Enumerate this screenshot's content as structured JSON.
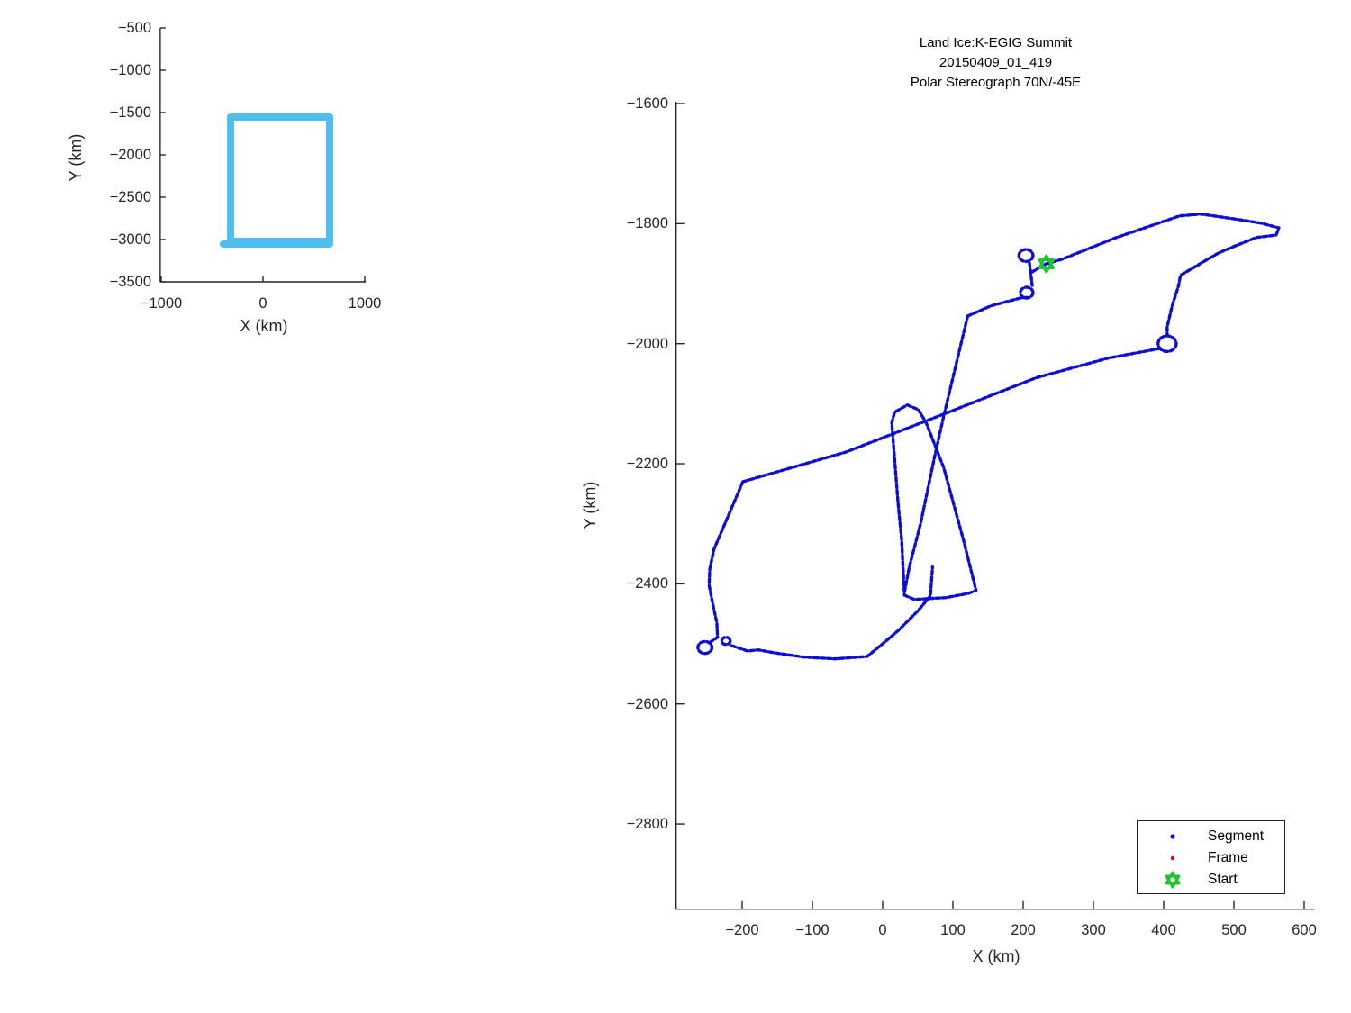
{
  "figure": {
    "background": "#ffffff"
  },
  "colors": {
    "track_blue": "#0d0dd8",
    "frame_red": "#e60000",
    "start_green": "#1fc42f",
    "inset_box_blue": "#4DBEEE",
    "axis_color": "#262626"
  },
  "chart_data": [
    {
      "id": "inset",
      "type": "line",
      "xlabel": "X (km)",
      "ylabel": "Y (km)",
      "x_ticks": [
        -1000,
        0,
        1000
      ],
      "y_ticks": [
        -500,
        -1000,
        -1500,
        -2000,
        -2500,
        -3000,
        -3500
      ],
      "xlim": [
        -1010,
        1010
      ],
      "ylim": [
        -3530,
        -500
      ],
      "grid": false,
      "series": [
        {
          "name": "segment-extent-box",
          "color": "#4DBEEE",
          "closed": true,
          "points": [
            [
              -318,
              -1553
            ],
            [
              655,
              -1553
            ],
            [
              655,
              -3021
            ],
            [
              -318,
              -3021
            ]
          ],
          "tail": [
            [
              -390,
              -3053
            ],
            [
              655,
              -3053
            ]
          ]
        }
      ]
    },
    {
      "id": "main",
      "type": "scatter-track",
      "title_lines": [
        "Land Ice:K-EGIG Summit",
        "20150409_01_419",
        "Polar Stereograph 70N/-45E"
      ],
      "xlabel": "X (km)",
      "ylabel": "Y (km)",
      "x_ticks": [
        -200,
        -100,
        0,
        100,
        200,
        300,
        400,
        500,
        600
      ],
      "y_ticks": [
        -1600,
        -1800,
        -2000,
        -2200,
        -2400,
        -2600,
        -2800
      ],
      "xlim": [
        -294,
        615
      ],
      "ylim": [
        -2942,
        -1597
      ],
      "grid": false,
      "legend": {
        "position": "south-east",
        "items": [
          {
            "label": "Segment",
            "marker": "dot",
            "color": "#0d0dd8"
          },
          {
            "label": "Frame",
            "marker": "dot",
            "color": "#e60000"
          },
          {
            "label": "Start",
            "marker": "star",
            "color": "#1fc42f"
          }
        ]
      },
      "start_point": [
        233,
        -1867
      ],
      "strands": [
        {
          "name": "outbound-northeast-and-turnback",
          "points": [
            [
              233,
              -1867
            ],
            [
              256,
              -1859
            ],
            [
              333,
              -1823
            ],
            [
              423,
              -1787
            ],
            [
              453,
              -1784
            ],
            [
              500,
              -1792
            ],
            [
              538,
              -1799
            ],
            [
              564,
              -1807
            ],
            [
              560,
              -1819
            ],
            [
              532,
              -1823
            ],
            [
              500,
              -1838
            ],
            [
              478,
              -1849
            ],
            [
              424,
              -1886
            ],
            [
              421,
              -1904
            ],
            [
              412,
              -1937
            ],
            [
              405,
              -1972
            ],
            [
              405,
              -1985
            ]
          ]
        },
        {
          "name": "transit-southwest-diagonal",
          "points": [
            [
              395,
              -2008
            ],
            [
              321,
              -2024
            ],
            [
              218,
              -2057
            ],
            [
              94,
              -2114
            ],
            [
              -51,
              -2180
            ],
            [
              -199,
              -2230
            ]
          ]
        },
        {
          "name": "west-leg-south",
          "points": [
            [
              -199,
              -2230
            ],
            [
              -222,
              -2293
            ],
            [
              -240,
              -2342
            ],
            [
              -246,
              -2375
            ],
            [
              -247,
              -2402
            ],
            [
              -242,
              -2432
            ],
            [
              -236,
              -2465
            ],
            [
              -235,
              -2489
            ],
            [
              -248,
              -2499
            ]
          ]
        },
        {
          "name": "south-bottom-leg-east",
          "points": [
            [
              -215,
              -2503
            ],
            [
              -192,
              -2512
            ],
            [
              -177,
              -2510
            ],
            [
              -154,
              -2515
            ],
            [
              -112,
              -2522
            ],
            [
              -68,
              -2525
            ],
            [
              -22,
              -2521
            ],
            [
              0,
              -2500
            ],
            [
              23,
              -2477
            ],
            [
              51,
              -2444
            ],
            [
              68,
              -2420
            ],
            [
              71,
              -2372
            ]
          ]
        },
        {
          "name": "summit-descent-line",
          "points": [
            [
              121,
              -1954
            ],
            [
              106,
              -2027
            ],
            [
              87,
              -2120
            ],
            [
              74,
              -2188
            ],
            [
              54,
              -2300
            ],
            [
              38,
              -2372
            ],
            [
              31,
              -2414
            ]
          ]
        },
        {
          "name": "connector-to-descent",
          "points": [
            [
              196,
              -1924
            ],
            [
              154,
              -1937
            ],
            [
              121,
              -1954
            ]
          ]
        },
        {
          "name": "start-to-holding-loops",
          "points": [
            [
              233,
              -1867
            ],
            [
              221,
              -1875
            ],
            [
              212,
              -1881
            ]
          ]
        },
        {
          "name": "holding-loop-neck",
          "points": [
            [
              209,
              -1866
            ],
            [
              213,
              -1903
            ]
          ]
        },
        {
          "name": "holding-loop-exit",
          "points": [
            [
              205,
              -1923
            ],
            [
              196,
              -1924
            ]
          ]
        },
        {
          "name": "survey-sliver-loop",
          "points": [
            [
              31,
              -2419
            ],
            [
              45,
              -2426
            ],
            [
              90,
              -2423
            ],
            [
              122,
              -2416
            ],
            [
              133,
              -2411
            ],
            [
              115,
              -2327
            ],
            [
              87,
              -2207
            ],
            [
              62,
              -2132
            ],
            [
              51,
              -2110
            ],
            [
              35,
              -2102
            ],
            [
              17,
              -2114
            ],
            [
              13,
              -2132
            ],
            [
              22,
              -2267
            ],
            [
              27,
              -2327
            ],
            [
              31,
              -2419
            ]
          ]
        }
      ],
      "loops": [
        {
          "name": "turn-loop-2000",
          "c": [
            405,
            -2000
          ],
          "r": 13
        },
        {
          "name": "southwest-turn-loop-large",
          "c": [
            -253,
            -2506
          ],
          "r": 10
        },
        {
          "name": "southwest-turn-loop-small",
          "c": [
            -223,
            -2495
          ],
          "r": 6
        },
        {
          "name": "holding-loop-upper",
          "c": [
            204,
            -1853
          ],
          "r": 10
        },
        {
          "name": "holding-loop-lower",
          "c": [
            205,
            -1915
          ],
          "r": 9
        }
      ]
    }
  ]
}
